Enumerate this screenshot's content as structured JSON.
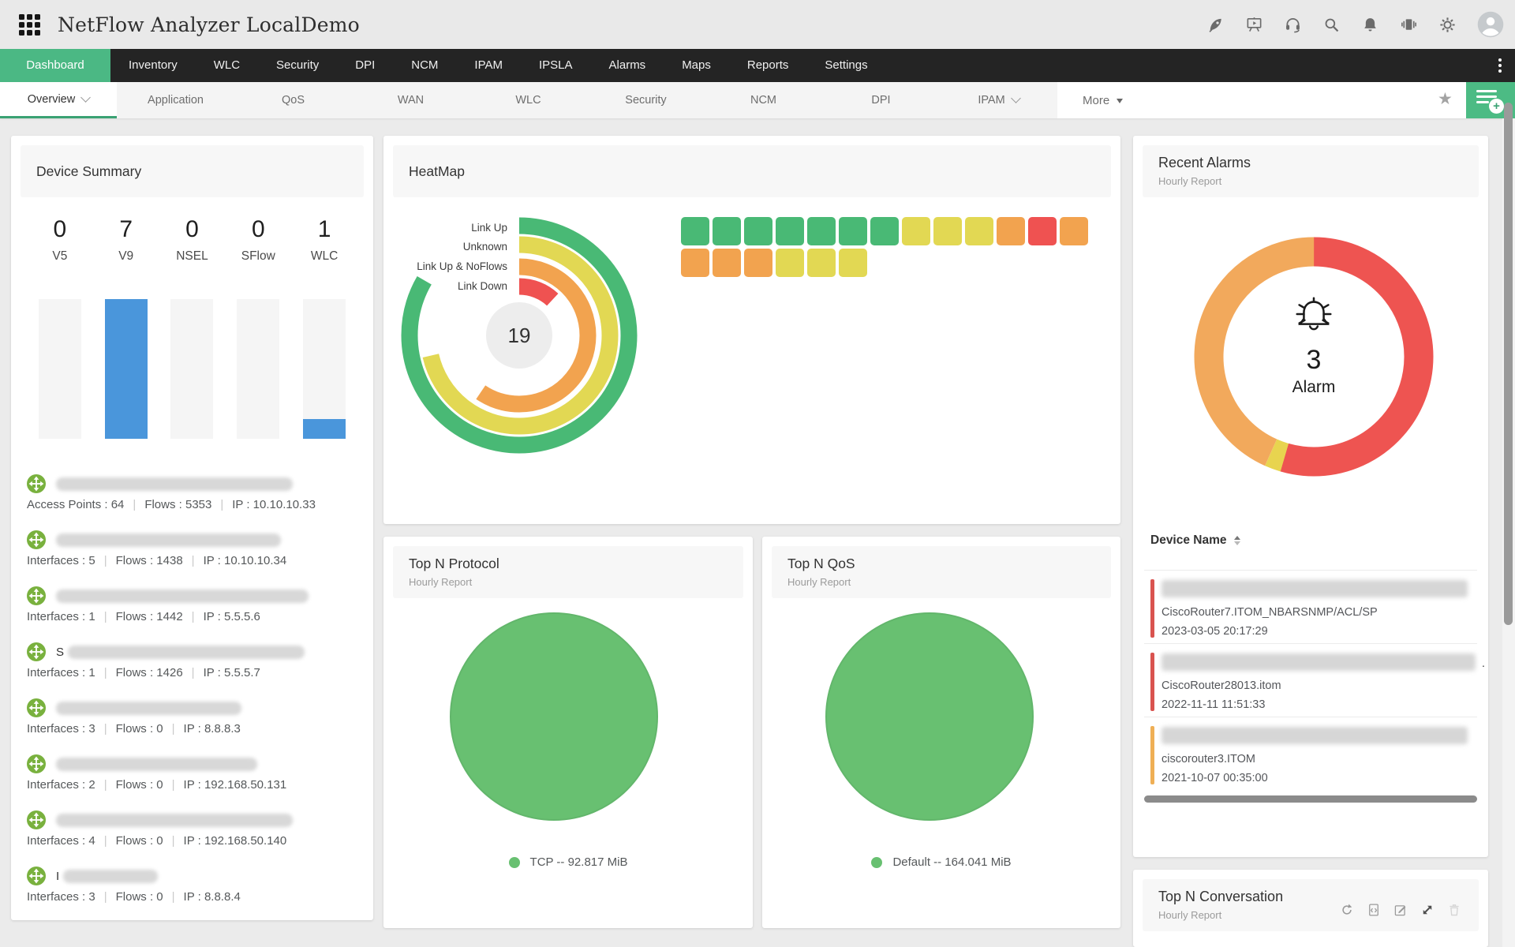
{
  "app_title": "NetFlow Analyzer LocalDemo",
  "topbar_icons": [
    "apps-grid-icon",
    "rocket-icon",
    "presentation-play-icon",
    "headset-icon",
    "search-icon",
    "bell-icon",
    "carousel-icon",
    "gear-icon",
    "user-avatar"
  ],
  "nav": {
    "items": [
      "Dashboard",
      "Inventory",
      "WLC",
      "Security",
      "DPI",
      "NCM",
      "IPAM",
      "IPSLA",
      "Alarms",
      "Maps",
      "Reports",
      "Settings"
    ],
    "active_index": 0
  },
  "subnav": {
    "items": [
      {
        "label": "Overview",
        "dropdown": true,
        "active": true
      },
      {
        "label": "Application"
      },
      {
        "label": "QoS"
      },
      {
        "label": "WAN"
      },
      {
        "label": "WLC"
      },
      {
        "label": "Security"
      },
      {
        "label": "NCM"
      },
      {
        "label": "DPI"
      },
      {
        "label": "IPAM",
        "dropdown": true
      }
    ],
    "more_label": "More"
  },
  "device_summary": {
    "title": "Device Summary",
    "bar_color": "#4a96db",
    "stats": [
      {
        "value": "0",
        "label": "V5",
        "fill_pct": 0
      },
      {
        "value": "7",
        "label": "V9",
        "fill_pct": 100
      },
      {
        "value": "0",
        "label": "NSEL",
        "fill_pct": 0
      },
      {
        "value": "0",
        "label": "SFlow",
        "fill_pct": 0
      },
      {
        "value": "1",
        "label": "WLC",
        "fill_pct": 14
      }
    ],
    "devices": [
      {
        "name_prefix": "",
        "blur_width": 300,
        "stats": [
          "Access Points : 64",
          "Flows : 5353",
          "IP : 10.10.10.33"
        ]
      },
      {
        "name_prefix": "",
        "blur_width": 285,
        "stats": [
          "Interfaces : 5",
          "Flows : 1438",
          "IP : 10.10.10.34"
        ]
      },
      {
        "name_prefix": "",
        "blur_width": 320,
        "stats": [
          "Interfaces : 1",
          "Flows : 1442",
          "IP : 5.5.5.6"
        ]
      },
      {
        "name_prefix": "S",
        "blur_width": 300,
        "stats": [
          "Interfaces : 1",
          "Flows : 1426",
          "IP : 5.5.5.7"
        ]
      },
      {
        "name_prefix": "",
        "blur_width": 235,
        "stats": [
          "Interfaces : 3",
          "Flows : 0",
          "IP : 8.8.8.3"
        ]
      },
      {
        "name_prefix": "",
        "blur_width": 255,
        "stats": [
          "Interfaces : 2",
          "Flows : 0",
          "IP : 192.168.50.131"
        ]
      },
      {
        "name_prefix": "",
        "blur_width": 300,
        "stats": [
          "Interfaces : 4",
          "Flows : 0",
          "IP : 192.168.50.140"
        ]
      },
      {
        "name_prefix": "I",
        "blur_width": 120,
        "stats": [
          "Interfaces : 3",
          "Flows : 0",
          "IP : 8.8.8.4"
        ]
      }
    ]
  },
  "heatmap": {
    "title": "HeatMap",
    "center_value": "19",
    "rings": [
      {
        "label": "Link Up",
        "value": 7,
        "sweep": 300,
        "color": "#49b975"
      },
      {
        "label": "Unknown",
        "value": 6,
        "sweep": 257,
        "color": "#e2d853"
      },
      {
        "label": "Link Up & NoFlows",
        "value": 5,
        "sweep": 214,
        "color": "#f2a34f"
      },
      {
        "label": "Link Down",
        "value": 1,
        "sweep": 43,
        "color": "#ef5251"
      }
    ],
    "grid_colors": {
      "green": "#49b975",
      "yellow": "#e2d853",
      "orange": "#f2a34f",
      "red": "#ef5251"
    },
    "grid_rows": [
      [
        "green",
        "green",
        "green",
        "green",
        "green",
        "green",
        "green",
        "yellow",
        "yellow",
        "yellow",
        "orange",
        "red",
        "orange"
      ],
      [
        "orange",
        "orange",
        "orange",
        "yellow",
        "yellow",
        "yellow"
      ]
    ]
  },
  "top_n_protocol": {
    "title": "Top N Protocol",
    "subtitle": "Hourly Report",
    "legend": "TCP -- 92.817 MiB",
    "slices": [
      {
        "label": "TCP",
        "value": "92.817 MiB",
        "pct": 100,
        "color": "#68c071"
      }
    ]
  },
  "top_n_qos": {
    "title": "Top N QoS",
    "subtitle": "Hourly Report",
    "legend": "Default -- 164.041 MiB",
    "slices": [
      {
        "label": "Default",
        "value": "164.041 MiB",
        "pct": 100,
        "color": "#68c071"
      }
    ]
  },
  "recent_alarms": {
    "title": "Recent Alarms",
    "subtitle": "Hourly Report",
    "center_value": "3",
    "center_label": "Alarm",
    "segments": [
      {
        "name": "critical",
        "color": "#ee5451",
        "frac": 0.545
      },
      {
        "name": "attention",
        "color": "#e8d44f",
        "frac": 0.022
      },
      {
        "name": "trouble",
        "color": "#f2a95c",
        "frac": 0.433
      }
    ],
    "table_header": "Device Name",
    "rows": [
      {
        "severity_color": "#d9534f",
        "blur_width": 388,
        "suffix": "",
        "detail": "CiscoRouter7.ITOM_NBARSNMP/ACL/SP",
        "time": "2023-03-05 20:17:29"
      },
      {
        "severity_color": "#d9534f",
        "blur_width": 398,
        "suffix": ".",
        "detail": "CiscoRouter28013.itom",
        "time": "2022-11-11 11:51:33"
      },
      {
        "severity_color": "#efaf55",
        "blur_width": 388,
        "suffix": "",
        "detail": "ciscorouter3.ITOM",
        "time": "2021-10-07 00:35:00"
      }
    ]
  },
  "top_n_conversation": {
    "title": "Top N Conversation",
    "subtitle": "Hourly Report",
    "icons": [
      "refresh-icon",
      "export-report-icon",
      "edit-icon",
      "resize-icon",
      "delete-icon"
    ]
  }
}
